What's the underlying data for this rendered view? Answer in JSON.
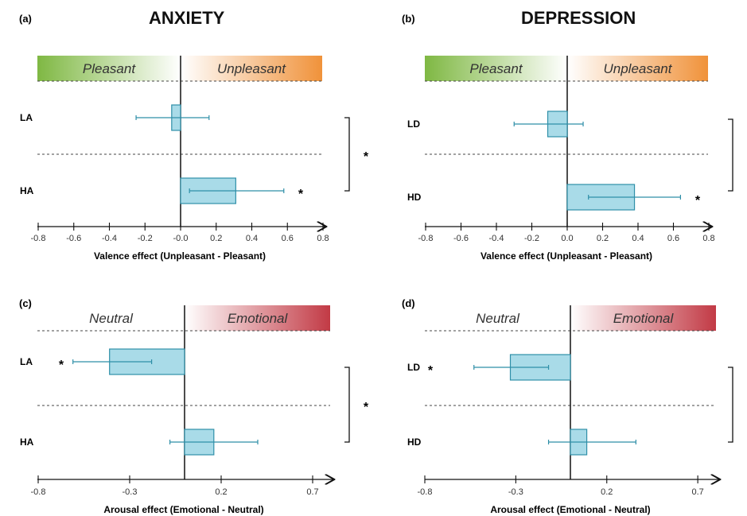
{
  "titles": {
    "anxiety": "ANXIETY",
    "depression": "DEPRESSION"
  },
  "colors": {
    "bar_fill": "#a9dbe8",
    "bar_stroke": "#2f8fa8",
    "pleasant": "#7fb843",
    "unpleasant": "#f0923a",
    "emotional": "#c23a45"
  },
  "chart_data": [
    {
      "id": "a",
      "panel_label": "(a)",
      "type": "bar",
      "orientation": "horizontal",
      "band": {
        "left": "Pleasant",
        "right": "Unpleasant",
        "left_color": "#7fb843",
        "right_color": "#f0923a"
      },
      "categories": [
        "LA",
        "HA"
      ],
      "values": [
        -0.05,
        0.31
      ],
      "error_low": [
        -0.25,
        0.05
      ],
      "error_high": [
        0.16,
        0.58
      ],
      "bar_markers": [
        "",
        "*"
      ],
      "group_marker": "*",
      "xlim": [
        -0.8,
        0.8
      ],
      "xticks": [
        "-0.8",
        "-0.6",
        "-0.4",
        "-0.2",
        "-0.0",
        "0.2",
        "0.4",
        "0.6",
        "0.8"
      ],
      "xlabel": "Valence effect (Unpleasant - Pleasant)"
    },
    {
      "id": "b",
      "panel_label": "(b)",
      "type": "bar",
      "orientation": "horizontal",
      "band": {
        "left": "Pleasant",
        "right": "Unpleasant",
        "left_color": "#7fb843",
        "right_color": "#f0923a"
      },
      "categories": [
        "LD",
        "HD"
      ],
      "values": [
        -0.11,
        0.38
      ],
      "error_low": [
        -0.3,
        0.12
      ],
      "error_high": [
        0.09,
        0.64
      ],
      "bar_markers": [
        "",
        "*"
      ],
      "group_marker": "",
      "xlim": [
        -0.8,
        0.8
      ],
      "xticks": [
        "-0.8",
        "-0.6",
        "-0.4",
        "-0.2",
        "0.0",
        "0.2",
        "0.4",
        "0.6",
        "0.8"
      ],
      "xlabel": "Valence effect (Unpleasant - Pleasant)"
    },
    {
      "id": "c",
      "panel_label": "(c)",
      "type": "bar",
      "orientation": "horizontal",
      "band": {
        "left": "Neutral",
        "right": "Emotional",
        "left_color": "#ffffff",
        "right_color": "#c23a45"
      },
      "categories": [
        "LA",
        "HA"
      ],
      "values": [
        -0.41,
        0.16
      ],
      "error_low": [
        -0.61,
        -0.08
      ],
      "error_high": [
        -0.18,
        0.4
      ],
      "bar_markers": [
        "*",
        ""
      ],
      "group_marker": "*",
      "xlim": [
        -0.8,
        0.8
      ],
      "xticks": [
        "-0.8",
        "-0.3",
        "0.2",
        "0.7"
      ],
      "xlabel": "Arousal effect (Emotional - Neutral)"
    },
    {
      "id": "d",
      "panel_label": "(d)",
      "type": "bar",
      "orientation": "horizontal",
      "band": {
        "left": "Neutral",
        "right": "Emotional",
        "left_color": "#ffffff",
        "right_color": "#c23a45"
      },
      "categories": [
        "LD",
        "HD"
      ],
      "values": [
        -0.33,
        0.09
      ],
      "error_low": [
        -0.53,
        -0.12
      ],
      "error_high": [
        -0.12,
        0.36
      ],
      "bar_markers": [
        "*",
        ""
      ],
      "group_marker": "",
      "xlim": [
        -0.8,
        0.8
      ],
      "xticks": [
        "-0.8",
        "-0.3",
        "0.2",
        "0.7"
      ],
      "xlabel": "Arousal effect (Emotional - Neutral)"
    }
  ]
}
